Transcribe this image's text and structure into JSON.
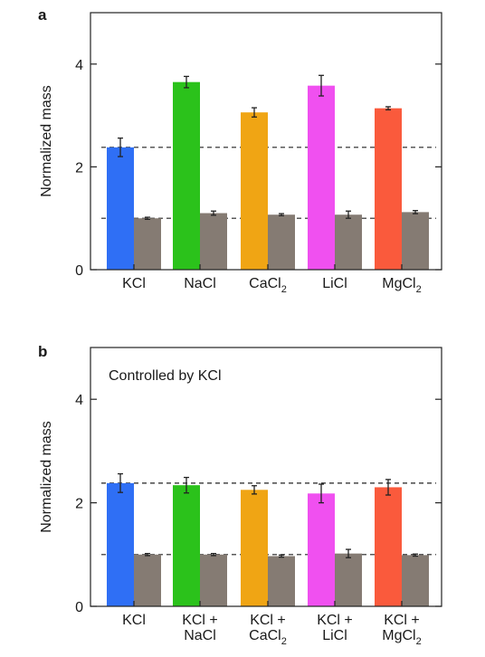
{
  "chart_data": [
    {
      "panel": "a",
      "type": "bar",
      "ylabel": "Normalized mass",
      "ylim": [
        0,
        5
      ],
      "yticks": [
        0,
        2,
        4
      ],
      "annotation": "",
      "categories": [
        {
          "lines": [
            "KCl"
          ],
          "sub": ""
        },
        {
          "lines": [
            "NaCl"
          ],
          "sub": ""
        },
        {
          "lines": [
            "CaCl"
          ],
          "sub": "2"
        },
        {
          "lines": [
            "LiCl"
          ],
          "sub": ""
        },
        {
          "lines": [
            "MgCl"
          ],
          "sub": "2"
        }
      ],
      "series": [
        {
          "values": [
            2.38,
            3.65,
            3.06,
            3.58,
            3.14
          ],
          "errors": [
            0.18,
            0.11,
            0.09,
            0.2,
            0.03
          ],
          "colors": [
            "#2f6ff5",
            "#2bc21b",
            "#f0a514",
            "#f050f0",
            "#fa5a3c"
          ]
        },
        {
          "values": [
            1.0,
            1.1,
            1.07,
            1.07,
            1.12
          ],
          "errors": [
            0.02,
            0.04,
            0.02,
            0.07,
            0.03
          ],
          "colors": [
            "#857b73",
            "#857b73",
            "#857b73",
            "#857b73",
            "#857b73"
          ]
        }
      ],
      "reference_lines": [
        2.38,
        1.0
      ],
      "grid": false
    },
    {
      "panel": "b",
      "type": "bar",
      "ylabel": "Normalized mass",
      "ylim": [
        0,
        5
      ],
      "yticks": [
        0,
        2,
        4
      ],
      "annotation": "Controlled by KCl",
      "categories": [
        {
          "lines": [
            "KCl"
          ],
          "sub": ""
        },
        {
          "lines": [
            "KCl +",
            "NaCl"
          ],
          "sub": ""
        },
        {
          "lines": [
            "KCl +",
            "CaCl"
          ],
          "sub": "2"
        },
        {
          "lines": [
            "KCl +",
            "LiCl"
          ],
          "sub": ""
        },
        {
          "lines": [
            "KCl +",
            "MgCl"
          ],
          "sub": "2"
        }
      ],
      "series": [
        {
          "values": [
            2.38,
            2.34,
            2.25,
            2.18,
            2.3
          ],
          "errors": [
            0.18,
            0.15,
            0.08,
            0.18,
            0.15
          ],
          "colors": [
            "#2f6ff5",
            "#2bc21b",
            "#f0a514",
            "#f050f0",
            "#fa5a3c"
          ]
        },
        {
          "values": [
            1.0,
            1.0,
            0.97,
            1.02,
            0.99
          ],
          "errors": [
            0.02,
            0.02,
            0.02,
            0.08,
            0.02
          ],
          "colors": [
            "#857b73",
            "#857b73",
            "#857b73",
            "#857b73",
            "#857b73"
          ]
        }
      ],
      "reference_lines": [
        2.38,
        1.0
      ],
      "grid": false
    }
  ]
}
